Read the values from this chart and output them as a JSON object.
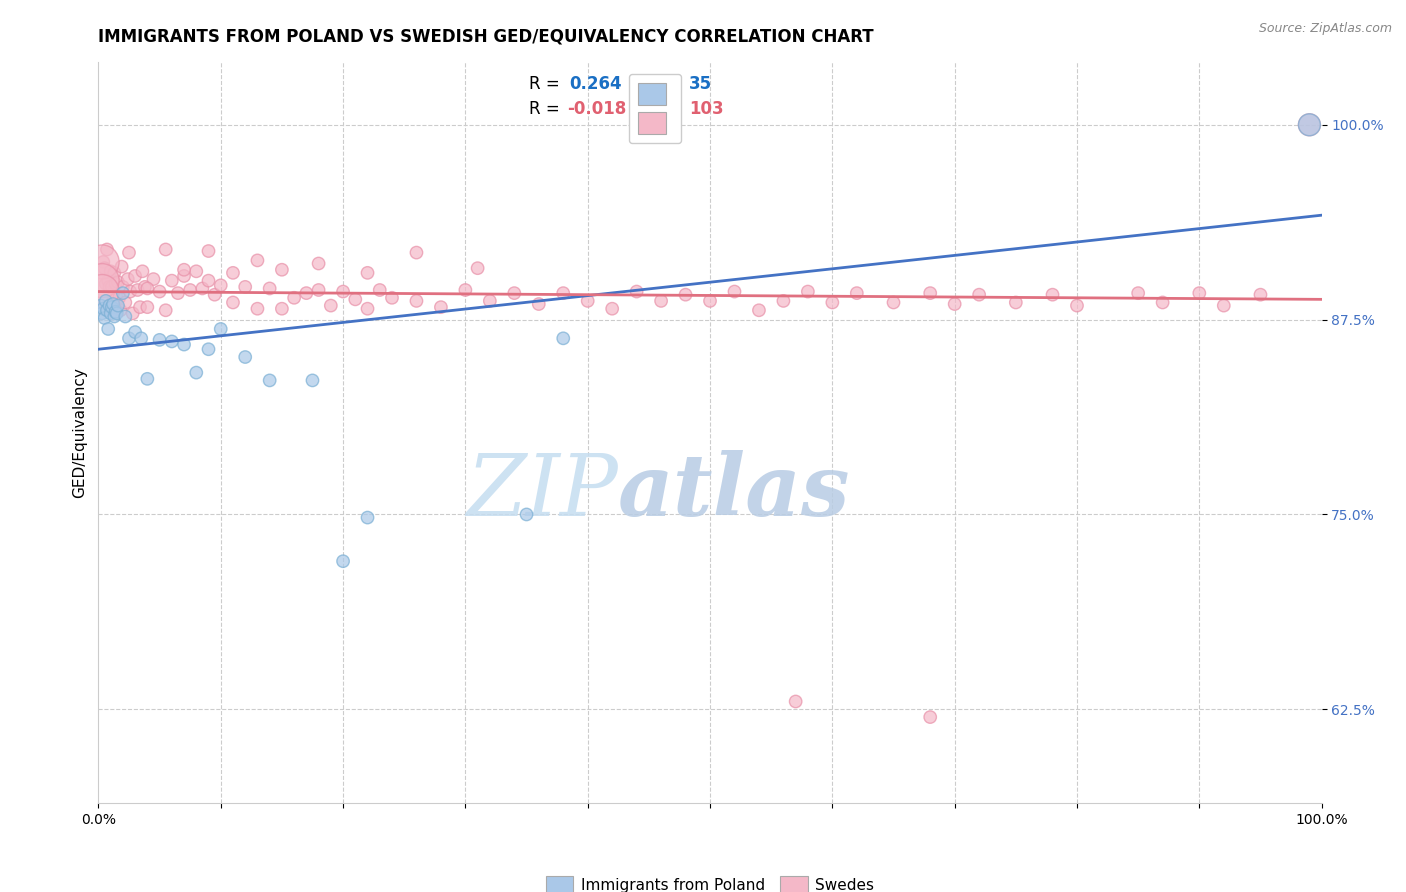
{
  "title": "IMMIGRANTS FROM POLAND VS SWEDISH GED/EQUIVALENCY CORRELATION CHART",
  "source": "Source: ZipAtlas.com",
  "ylabel": "GED/Equivalency",
  "yticks": [
    0.625,
    0.75,
    0.875,
    1.0
  ],
  "ytick_labels": [
    "62.5%",
    "75.0%",
    "87.5%",
    "100.0%"
  ],
  "xlim": [
    0.0,
    1.0
  ],
  "ylim": [
    0.565,
    1.04
  ],
  "blue_color": "#aac8e8",
  "blue_edge_color": "#7aafd4",
  "pink_color": "#f4b8c8",
  "pink_edge_color": "#e890a8",
  "blue_line_color": "#4472c4",
  "pink_line_color": "#e07080",
  "blue_line_y_start": 0.856,
  "blue_line_y_end": 0.942,
  "pink_line_y_start": 0.893,
  "pink_line_y_end": 0.888,
  "grid_color": "#cccccc",
  "background_color": "#ffffff",
  "title_fontsize": 12,
  "axis_label_fontsize": 11,
  "watermark_zip": "ZIP",
  "watermark_atlas": "atlas",
  "legend_r1": "0.264",
  "legend_n1": "35",
  "legend_r2": "-0.018",
  "legend_n2": "103",
  "blue_x": [
    0.002,
    0.003,
    0.004,
    0.005,
    0.006,
    0.007,
    0.008,
    0.009,
    0.01,
    0.011,
    0.012,
    0.013,
    0.014,
    0.015,
    0.016,
    0.02,
    0.022,
    0.025,
    0.03,
    0.035,
    0.04,
    0.05,
    0.06,
    0.07,
    0.08,
    0.09,
    0.1,
    0.12,
    0.14,
    0.175,
    0.2,
    0.22,
    0.35,
    0.38,
    0.99
  ],
  "blue_y": [
    0.884,
    0.879,
    0.882,
    0.876,
    0.887,
    0.881,
    0.869,
    0.884,
    0.879,
    0.883,
    0.885,
    0.877,
    0.88,
    0.879,
    0.884,
    0.892,
    0.877,
    0.863,
    0.867,
    0.863,
    0.837,
    0.862,
    0.861,
    0.859,
    0.841,
    0.856,
    0.869,
    0.851,
    0.836,
    0.836,
    0.72,
    0.748,
    0.75,
    0.863,
    1.0
  ],
  "blue_sizes": [
    80,
    80,
    80,
    80,
    80,
    80,
    80,
    80,
    80,
    80,
    80,
    80,
    80,
    80,
    80,
    80,
    80,
    80,
    80,
    80,
    80,
    80,
    80,
    80,
    80,
    80,
    80,
    80,
    80,
    80,
    80,
    80,
    80,
    80,
    250
  ],
  "pink_x": [
    0.004,
    0.005,
    0.006,
    0.007,
    0.008,
    0.009,
    0.01,
    0.011,
    0.012,
    0.013,
    0.014,
    0.015,
    0.016,
    0.017,
    0.018,
    0.019,
    0.02,
    0.022,
    0.024,
    0.026,
    0.028,
    0.03,
    0.032,
    0.034,
    0.036,
    0.038,
    0.04,
    0.045,
    0.05,
    0.055,
    0.06,
    0.065,
    0.07,
    0.075,
    0.08,
    0.085,
    0.09,
    0.095,
    0.1,
    0.11,
    0.12,
    0.13,
    0.14,
    0.15,
    0.16,
    0.17,
    0.18,
    0.19,
    0.2,
    0.21,
    0.22,
    0.23,
    0.24,
    0.26,
    0.28,
    0.3,
    0.32,
    0.34,
    0.36,
    0.38,
    0.4,
    0.42,
    0.44,
    0.46,
    0.48,
    0.5,
    0.52,
    0.54,
    0.56,
    0.58,
    0.6,
    0.62,
    0.65,
    0.68,
    0.7,
    0.72,
    0.75,
    0.78,
    0.8,
    0.85,
    0.87,
    0.9,
    0.92,
    0.95,
    0.57,
    0.68,
    0.003,
    0.003,
    0.003,
    0.025,
    0.04,
    0.055,
    0.07,
    0.09,
    0.11,
    0.13,
    0.15,
    0.18,
    0.22,
    0.26,
    0.31,
    0.99
  ],
  "pink_y": [
    0.912,
    0.908,
    0.898,
    0.92,
    0.9,
    0.896,
    0.906,
    0.896,
    0.887,
    0.905,
    0.898,
    0.889,
    0.899,
    0.889,
    0.881,
    0.909,
    0.896,
    0.886,
    0.901,
    0.893,
    0.879,
    0.903,
    0.894,
    0.883,
    0.906,
    0.896,
    0.883,
    0.901,
    0.893,
    0.881,
    0.9,
    0.892,
    0.903,
    0.894,
    0.906,
    0.895,
    0.9,
    0.891,
    0.897,
    0.886,
    0.896,
    0.882,
    0.895,
    0.882,
    0.889,
    0.892,
    0.894,
    0.884,
    0.893,
    0.888,
    0.882,
    0.894,
    0.889,
    0.887,
    0.883,
    0.894,
    0.887,
    0.892,
    0.885,
    0.892,
    0.887,
    0.882,
    0.893,
    0.887,
    0.891,
    0.887,
    0.893,
    0.881,
    0.887,
    0.893,
    0.886,
    0.892,
    0.886,
    0.892,
    0.885,
    0.891,
    0.886,
    0.891,
    0.884,
    0.892,
    0.886,
    0.892,
    0.884,
    0.891,
    0.63,
    0.62,
    0.912,
    0.9,
    0.893,
    0.918,
    0.895,
    0.92,
    0.907,
    0.919,
    0.905,
    0.913,
    0.907,
    0.911,
    0.905,
    0.918,
    0.908,
    1.0
  ],
  "pink_sizes": [
    80,
    80,
    80,
    80,
    80,
    80,
    80,
    80,
    80,
    80,
    80,
    80,
    80,
    80,
    80,
    80,
    80,
    80,
    80,
    80,
    80,
    80,
    80,
    80,
    80,
    80,
    80,
    80,
    80,
    80,
    80,
    80,
    80,
    80,
    80,
    80,
    80,
    80,
    80,
    80,
    80,
    80,
    80,
    80,
    80,
    80,
    80,
    80,
    80,
    80,
    80,
    80,
    80,
    80,
    80,
    80,
    80,
    80,
    80,
    80,
    80,
    80,
    80,
    80,
    80,
    80,
    80,
    80,
    80,
    80,
    80,
    80,
    80,
    80,
    80,
    80,
    80,
    80,
    80,
    80,
    80,
    80,
    80,
    80,
    80,
    80,
    600,
    600,
    600,
    80,
    80,
    80,
    80,
    80,
    80,
    80,
    80,
    80,
    80,
    80,
    80,
    250
  ]
}
